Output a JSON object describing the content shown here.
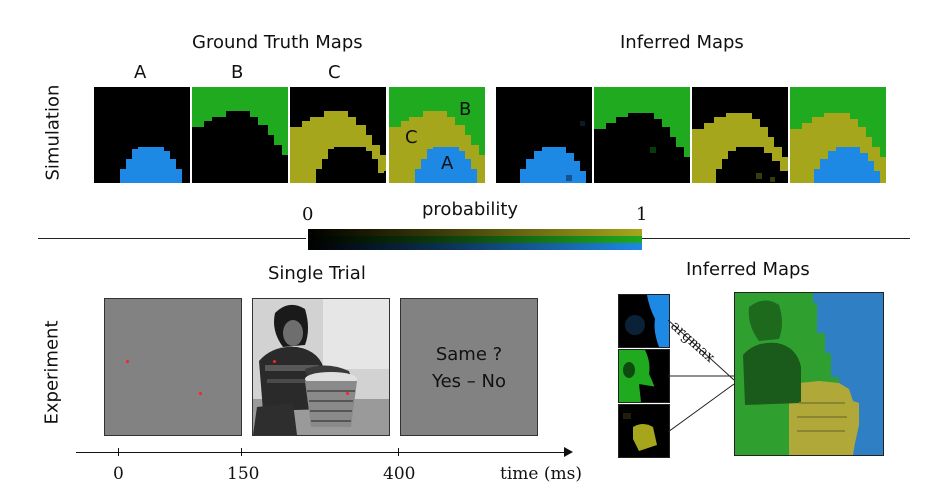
{
  "simulation": {
    "row_label": "Simulation",
    "ground_truth_title": "Ground Truth Maps",
    "inferred_title": "Inferred Maps",
    "column_letters": [
      "A",
      "B",
      "C"
    ],
    "overlay_letters": {
      "a": "A",
      "b": "B",
      "c": "C"
    }
  },
  "colorbar": {
    "label": "probability",
    "min_label": "0",
    "max_label": "1",
    "colors": {
      "blue": "#1e88e5",
      "green": "#1faa1f",
      "olive": "#a6a61c"
    }
  },
  "experiment": {
    "row_label": "Experiment",
    "single_trial_title": "Single Trial",
    "inferred_title": "Inferred Maps",
    "question_line1": "Same ?",
    "question_line2": "Yes – No",
    "argmax_label": "argmax",
    "timeline": {
      "ticks": [
        "0",
        "150",
        "400"
      ],
      "axis_label": "time (ms)"
    }
  }
}
